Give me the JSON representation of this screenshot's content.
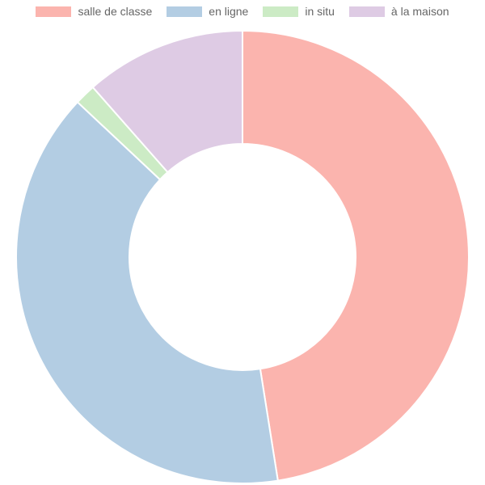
{
  "chart_data": {
    "type": "pie",
    "variant": "doughnut",
    "legend_position": "top",
    "categories": [
      "salle de classe",
      "en ligne",
      "in situ",
      "à la maison"
    ],
    "values": [
      47.5,
      39.5,
      1.5,
      11.5
    ],
    "colors": [
      "#fbb4ae",
      "#b3cde3",
      "#ccebc5",
      "#decbe4"
    ]
  }
}
